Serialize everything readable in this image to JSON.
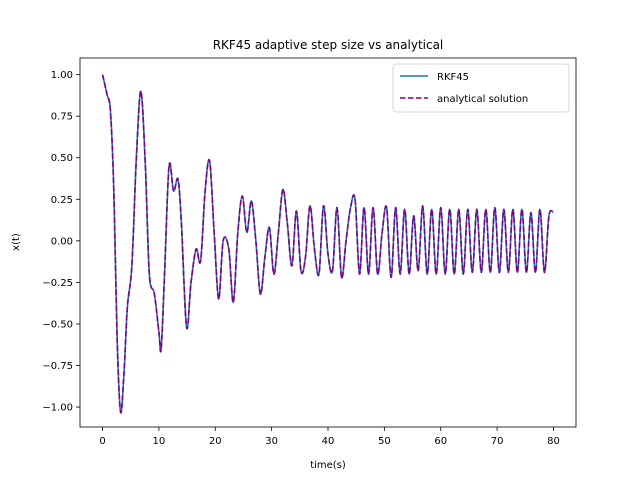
{
  "chart_data": {
    "type": "line",
    "title": "RKF45 adaptive step size vs analytical",
    "xlabel": "time(s)",
    "ylabel": "x(t)",
    "xlim": [
      -4,
      84
    ],
    "ylim": [
      -1.12,
      1.1
    ],
    "xticks": [
      0,
      10,
      20,
      30,
      40,
      50,
      60,
      70,
      80
    ],
    "xtick_labels": [
      "0",
      "10",
      "20",
      "30",
      "40",
      "50",
      "60",
      "70",
      "80"
    ],
    "yticks": [
      -1.0,
      -0.75,
      -0.5,
      -0.25,
      0.0,
      0.25,
      0.5,
      0.75,
      1.0
    ],
    "ytick_labels": [
      "−1.00",
      "−0.75",
      "−0.50",
      "−0.25",
      "0.00",
      "0.25",
      "0.50",
      "0.75",
      "1.00"
    ],
    "grid": false,
    "legend_position": "top-right",
    "series": [
      {
        "name": "RKF45",
        "color": "#1f77b4",
        "style": "solid",
        "points": [
          [
            0,
            1.0
          ],
          [
            0.8,
            0.88
          ],
          [
            1.4,
            0.78
          ],
          [
            2.0,
            0.3
          ],
          [
            2.6,
            -0.6
          ],
          [
            3.2,
            -1.03
          ],
          [
            3.8,
            -0.8
          ],
          [
            4.4,
            -0.4
          ],
          [
            5.2,
            -0.15
          ],
          [
            6.0,
            0.5
          ],
          [
            6.8,
            0.9
          ],
          [
            7.6,
            0.45
          ],
          [
            8.3,
            -0.2
          ],
          [
            9.2,
            -0.32
          ],
          [
            10.0,
            -0.55
          ],
          [
            10.4,
            -0.65
          ],
          [
            11.0,
            -0.2
          ],
          [
            11.8,
            0.45
          ],
          [
            12.6,
            0.3
          ],
          [
            13.4,
            0.37
          ],
          [
            14.0,
            0.1
          ],
          [
            14.9,
            -0.52
          ],
          [
            15.7,
            -0.25
          ],
          [
            16.6,
            -0.05
          ],
          [
            17.4,
            -0.12
          ],
          [
            18.2,
            0.3
          ],
          [
            19.0,
            0.48
          ],
          [
            19.8,
            0.05
          ],
          [
            20.6,
            -0.35
          ],
          [
            21.4,
            0.0
          ],
          [
            22.4,
            -0.05
          ],
          [
            23.2,
            -0.37
          ],
          [
            24.0,
            0.05
          ],
          [
            24.8,
            0.27
          ],
          [
            25.6,
            0.05
          ],
          [
            26.4,
            0.24
          ],
          [
            27.2,
            0.0
          ],
          [
            28.0,
            -0.32
          ],
          [
            28.8,
            -0.1
          ],
          [
            29.6,
            0.08
          ],
          [
            30.4,
            -0.2
          ],
          [
            31.2,
            0.05
          ],
          [
            32.0,
            0.31
          ],
          [
            32.8,
            0.1
          ],
          [
            33.6,
            -0.15
          ],
          [
            34.4,
            0.18
          ],
          [
            35.2,
            -0.18
          ],
          [
            36.0,
            -0.1
          ],
          [
            36.8,
            0.21
          ],
          [
            37.6,
            -0.05
          ],
          [
            38.4,
            -0.2
          ],
          [
            39.2,
            0.21
          ],
          [
            40.0,
            -0.08
          ],
          [
            40.8,
            -0.18
          ],
          [
            41.6,
            0.2
          ],
          [
            42.4,
            -0.22
          ],
          [
            43.2,
            0.0
          ],
          [
            44.0,
            0.2
          ],
          [
            44.8,
            0.25
          ],
          [
            45.6,
            -0.2
          ],
          [
            46.4,
            0.2
          ],
          [
            47.2,
            -0.2
          ],
          [
            48.0,
            0.2
          ],
          [
            48.8,
            -0.2
          ],
          [
            49.6,
            0.05
          ],
          [
            50.4,
            0.2
          ],
          [
            51.2,
            -0.22
          ],
          [
            52.0,
            0.2
          ],
          [
            52.8,
            -0.2
          ],
          [
            53.6,
            0.19
          ],
          [
            54.4,
            -0.2
          ],
          [
            55.2,
            0.15
          ],
          [
            56.0,
            -0.18
          ],
          [
            56.8,
            0.21
          ],
          [
            57.6,
            -0.2
          ],
          [
            58.4,
            0.19
          ],
          [
            59.2,
            -0.2
          ],
          [
            60.0,
            0.2
          ],
          [
            60.8,
            -0.2
          ],
          [
            61.6,
            0.19
          ],
          [
            62.4,
            -0.2
          ],
          [
            63.2,
            0.19
          ],
          [
            64.0,
            -0.2
          ],
          [
            64.8,
            0.19
          ],
          [
            65.6,
            -0.19
          ],
          [
            66.4,
            0.19
          ],
          [
            67.2,
            -0.19
          ],
          [
            68.0,
            0.19
          ],
          [
            68.8,
            -0.19
          ],
          [
            69.6,
            0.2
          ],
          [
            70.4,
            -0.19
          ],
          [
            71.2,
            0.19
          ],
          [
            72.0,
            -0.19
          ],
          [
            72.8,
            0.19
          ],
          [
            73.6,
            -0.19
          ],
          [
            74.4,
            0.19
          ],
          [
            75.2,
            -0.19
          ],
          [
            76.0,
            0.17
          ],
          [
            76.8,
            -0.19
          ],
          [
            77.6,
            0.19
          ],
          [
            78.4,
            -0.19
          ],
          [
            79.2,
            0.15
          ],
          [
            80.0,
            0.17
          ]
        ]
      },
      {
        "name": "analytical solution",
        "color": "#800080",
        "style": "dashed",
        "points": "same_as_series_0"
      }
    ]
  }
}
